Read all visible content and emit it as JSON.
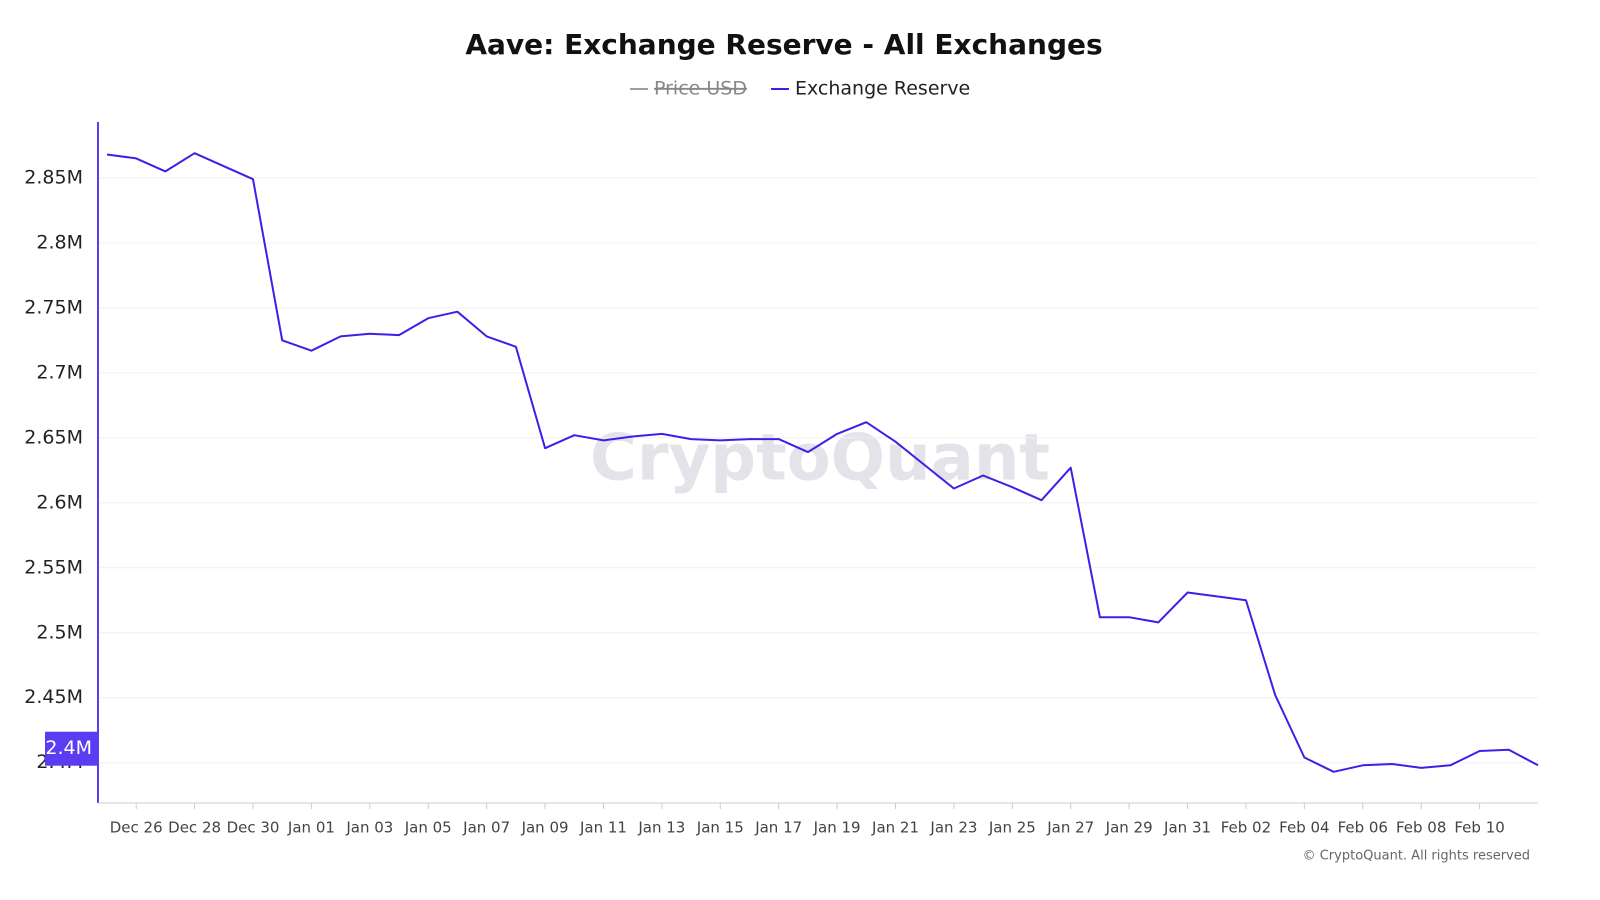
{
  "chart_data": {
    "type": "line",
    "title": "Aave: Exchange Reserve - All Exchanges",
    "watermark": "CryptoQuant",
    "credit": "© CryptoQuant. All rights reserved",
    "hidden_series": [
      {
        "name": "Price USD",
        "color": "#9e9e9e"
      }
    ],
    "categories": [
      null,
      "Dec 26",
      null,
      "Dec 28",
      null,
      "Dec 30",
      null,
      "Jan 01",
      null,
      "Jan 03",
      null,
      "Jan 05",
      null,
      "Jan 07",
      null,
      "Jan 09",
      null,
      "Jan 11",
      null,
      "Jan 13",
      null,
      "Jan 15",
      null,
      "Jan 17",
      null,
      "Jan 19",
      null,
      "Jan 21",
      null,
      "Jan 23",
      null,
      "Jan 25",
      null,
      "Jan 27",
      null,
      "Jan 29",
      null,
      "Jan 31",
      null,
      "Feb 02",
      null,
      "Feb 04",
      null,
      "Feb 06",
      null,
      "Feb 08",
      null,
      "Feb 10",
      null,
      null
    ],
    "series": [
      {
        "name": "Exchange Reserve",
        "color": "#3f1fe8",
        "values": [
          2868000,
          2865000,
          2855000,
          2869000,
          2859000,
          2849000,
          2725000,
          2717000,
          2728000,
          2730000,
          2729000,
          2742000,
          2747000,
          2728000,
          2720000,
          2642000,
          2652000,
          2648000,
          2651000,
          2653000,
          2649000,
          2648000,
          2649000,
          2649000,
          2639000,
          2653000,
          2662000,
          2647000,
          2629000,
          2611000,
          2621000,
          2612000,
          2602000,
          2627000,
          2512000,
          2512000,
          2508000,
          2531000,
          2528000,
          2525000,
          2452000,
          2404000,
          2393000,
          2398000,
          2399000,
          2396000,
          2398000,
          2409000,
          2410000,
          2398000
        ]
      }
    ],
    "ylim": [
      2369000,
      2893000
    ],
    "yticks": [
      {
        "value": 2400000,
        "label": "2.4M"
      },
      {
        "value": 2450000,
        "label": "2.45M"
      },
      {
        "value": 2500000,
        "label": "2.5M"
      },
      {
        "value": 2550000,
        "label": "2.55M"
      },
      {
        "value": 2600000,
        "label": "2.6M"
      },
      {
        "value": 2650000,
        "label": "2.65M"
      },
      {
        "value": 2700000,
        "label": "2.7M"
      },
      {
        "value": 2750000,
        "label": "2.75M"
      },
      {
        "value": 2800000,
        "label": "2.8M"
      },
      {
        "value": 2850000,
        "label": "2.85M"
      }
    ],
    "crosshair": {
      "value": 2400000,
      "label": "2.4M"
    },
    "grid": true
  }
}
